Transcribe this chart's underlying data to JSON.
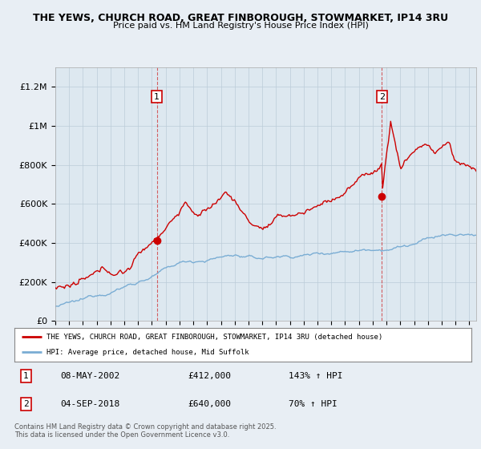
{
  "title_line1": "THE YEWS, CHURCH ROAD, GREAT FINBOROUGH, STOWMARKET, IP14 3RU",
  "title_line2": "Price paid vs. HM Land Registry's House Price Index (HPI)",
  "ylabel_ticks": [
    "£0",
    "£200K",
    "£400K",
    "£600K",
    "£800K",
    "£1M",
    "£1.2M"
  ],
  "ytick_values": [
    0,
    200000,
    400000,
    600000,
    800000,
    1000000,
    1200000
  ],
  "ylim": [
    0,
    1300000
  ],
  "xlim_start": 1995.0,
  "xlim_end": 2025.5,
  "red_color": "#cc0000",
  "blue_color": "#7aadd4",
  "plot_bg_color": "#dde8f0",
  "bg_color": "#e8eef4",
  "marker1_x": 2002.35,
  "marker1_y": 412000,
  "marker2_x": 2018.67,
  "marker2_y": 640000,
  "legend_label_red": "THE YEWS, CHURCH ROAD, GREAT FINBOROUGH, STOWMARKET, IP14 3RU (detached house)",
  "legend_label_blue": "HPI: Average price, detached house, Mid Suffolk",
  "table_data": [
    {
      "num": "1",
      "date": "08-MAY-2002",
      "price": "£412,000",
      "hpi": "143% ↑ HPI"
    },
    {
      "num": "2",
      "date": "04-SEP-2018",
      "price": "£640,000",
      "hpi": "70% ↑ HPI"
    }
  ],
  "footer": "Contains HM Land Registry data © Crown copyright and database right 2025.\nThis data is licensed under the Open Government Licence v3.0."
}
